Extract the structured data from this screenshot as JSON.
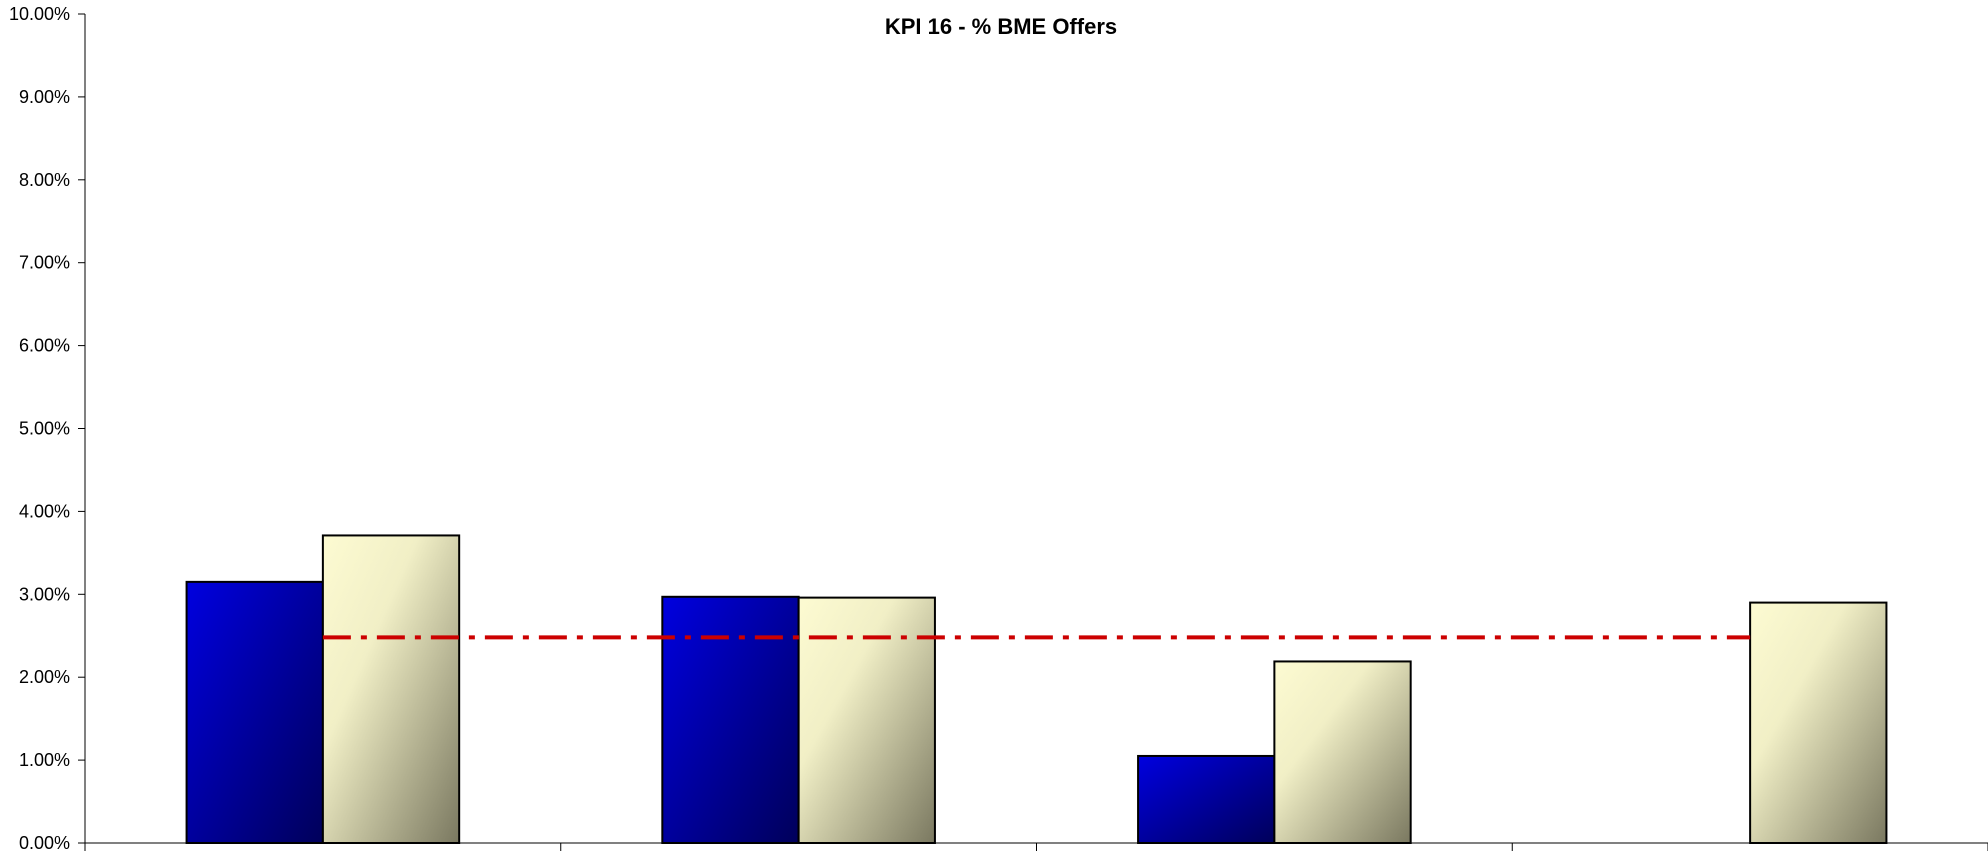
{
  "chart_data": {
    "type": "bar",
    "title": "KPI 16 - % BME Offers",
    "xlabel": "",
    "ylabel": "",
    "ylim": [
      0,
      0.1
    ],
    "yticks": [
      "0.00%",
      "1.00%",
      "2.00%",
      "3.00%",
      "4.00%",
      "5.00%",
      "6.00%",
      "7.00%",
      "8.00%",
      "9.00%",
      "10.00%"
    ],
    "categories": [
      "",
      "",
      "",
      ""
    ],
    "series": [
      {
        "values": [
          0.0315,
          0.0297,
          0.0105,
          null
        ],
        "color": "#0000cc",
        "style": "gradient-blue"
      },
      {
        "values": [
          0.0371,
          0.0296,
          0.0219,
          0.029
        ],
        "color": "#f5f2c8",
        "style": "gradient-cream"
      }
    ],
    "reference_line": {
      "value": 0.0248,
      "color": "#cc0000",
      "style": "dash-dot"
    },
    "grid": false,
    "legend": "none"
  }
}
